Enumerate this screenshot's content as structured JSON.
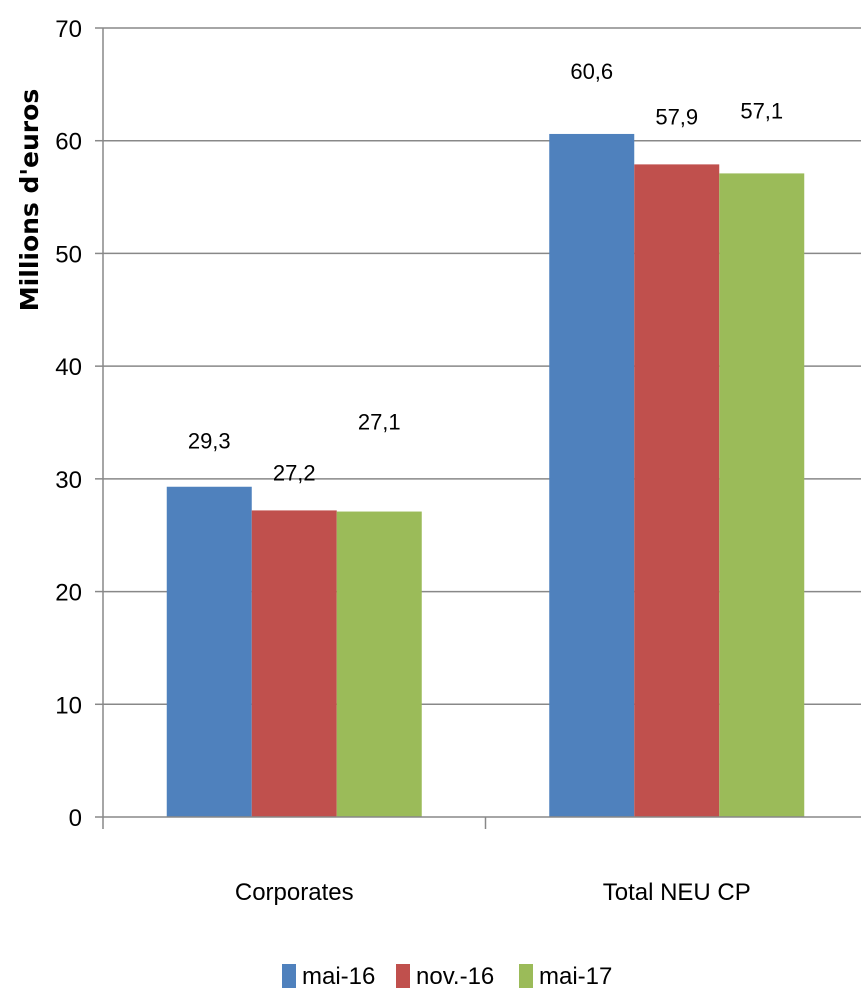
{
  "chart_data": {
    "type": "bar",
    "categories": [
      "Corporates",
      "Total NEU CP"
    ],
    "series": [
      {
        "name": "mai-16",
        "values": [
          29.3,
          60.6
        ],
        "labels": [
          "29,3",
          "60,6"
        ],
        "color": "#4f81bd"
      },
      {
        "name": "nov.-16",
        "values": [
          27.2,
          57.9
        ],
        "labels": [
          "27,2",
          "57,9"
        ],
        "color": "#c0504d"
      },
      {
        "name": "mai-17",
        "values": [
          27.1,
          57.1
        ],
        "labels": [
          "27,1",
          "57,1"
        ],
        "color": "#9bbb59"
      }
    ],
    "ylabel": "Millions d'euros",
    "ylim": [
      0,
      70
    ],
    "yticks": [
      0,
      10,
      20,
      30,
      40,
      50,
      60,
      70
    ],
    "grid": true,
    "legend": "bottom"
  }
}
